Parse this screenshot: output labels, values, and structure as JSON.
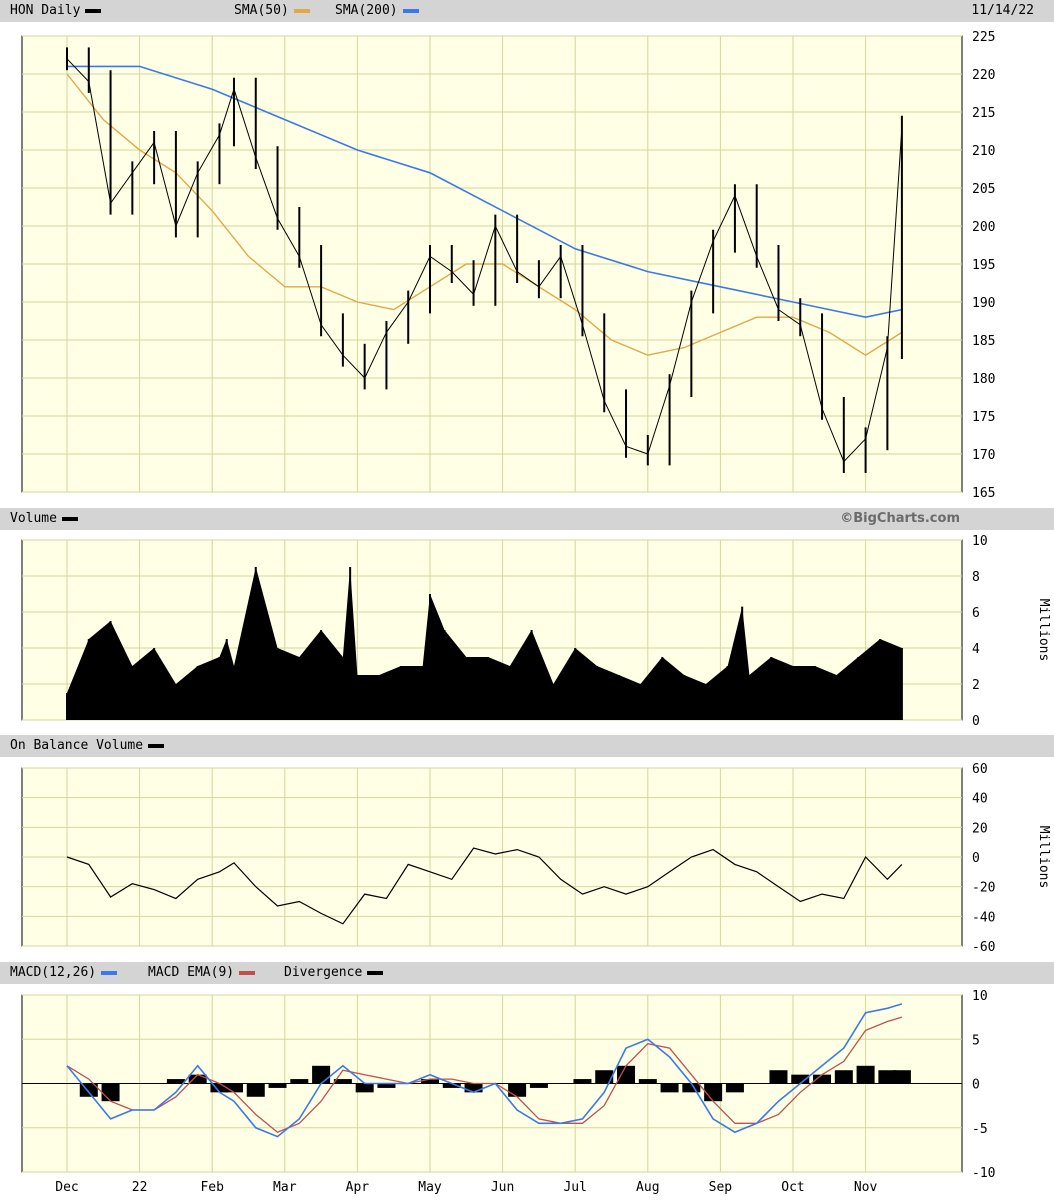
{
  "header": {
    "title": "HON Daily",
    "sma50_label": "SMA(50)",
    "sma200_label": "SMA(200)",
    "date": "11/14/22",
    "copyright": "©BigCharts.com"
  },
  "panels": {
    "volume_label": "Volume",
    "obv_label": "On Balance Volume",
    "macd_label": "MACD(12,26)",
    "macd_ema_label": "MACD EMA(9)",
    "divergence_label": "Divergence",
    "millions_label": "Millions"
  },
  "colors": {
    "background": "#ffffe6",
    "grid": "#d6d69a",
    "header_bar": "#d4d4d4",
    "price": "#000000",
    "sma50": "#e0a848",
    "sma200": "#3a7ae8",
    "macd": "#3a7ae8",
    "macd_ema": "#c0504d",
    "divergence": "#000000"
  },
  "x_labels": [
    "Dec",
    "22",
    "Feb",
    "Mar",
    "Apr",
    "May",
    "Jun",
    "Jul",
    "Aug",
    "Sep",
    "Oct",
    "Nov"
  ],
  "chart_data": [
    {
      "type": "line",
      "name": "price",
      "ylim": [
        165,
        225
      ],
      "yticks": [
        165,
        170,
        175,
        180,
        185,
        190,
        195,
        200,
        205,
        210,
        215,
        220,
        225
      ],
      "x_month_index": [
        0,
        0.3,
        0.6,
        0.9,
        1.2,
        1.5,
        1.8,
        2.1,
        2.3,
        2.6,
        2.9,
        3.2,
        3.5,
        3.8,
        4.1,
        4.4,
        4.7,
        5.0,
        5.3,
        5.6,
        5.9,
        6.2,
        6.5,
        6.8,
        7.1,
        7.4,
        7.7,
        8.0,
        8.3,
        8.6,
        8.9,
        9.2,
        9.5,
        9.8,
        10.1,
        10.4,
        10.7,
        11.0,
        11.3,
        11.5
      ],
      "close": [
        222,
        219,
        203,
        207,
        211,
        200,
        207,
        212,
        218,
        209,
        201,
        196,
        187,
        183,
        180,
        186,
        190,
        196,
        194,
        191,
        200,
        194,
        192,
        196,
        187,
        177,
        171,
        170,
        179,
        190,
        198,
        204,
        196,
        189,
        187,
        176,
        169,
        172,
        184,
        213
      ],
      "sma50_x": [
        0,
        0.5,
        1.0,
        1.5,
        2.0,
        2.5,
        3.0,
        3.5,
        4.0,
        4.5,
        5.0,
        5.5,
        6.0,
        6.5,
        7.0,
        7.5,
        8.0,
        8.5,
        9.0,
        9.5,
        10.0,
        10.5,
        11.0,
        11.5
      ],
      "sma50": [
        220,
        214,
        210,
        207,
        202,
        196,
        192,
        192,
        190,
        189,
        192,
        195,
        195,
        192,
        189,
        185,
        183,
        184,
        186,
        188,
        188,
        186,
        183,
        186
      ],
      "sma200_x": [
        0,
        1.0,
        2.0,
        3.0,
        4.0,
        5.0,
        6.0,
        7.0,
        8.0,
        9.0,
        10.0,
        10.5,
        11.0,
        11.5
      ],
      "sma200": [
        221,
        221,
        218,
        214,
        210,
        207,
        202,
        197,
        194,
        192,
        190,
        189,
        188,
        189
      ]
    },
    {
      "type": "bar",
      "name": "volume",
      "ylim": [
        0,
        10
      ],
      "yticks": [
        0,
        2,
        4,
        6,
        8,
        10
      ],
      "x_month_index": [
        0,
        0.3,
        0.6,
        0.9,
        1.2,
        1.5,
        1.8,
        2.1,
        2.2,
        2.3,
        2.6,
        2.9,
        3.2,
        3.5,
        3.8,
        3.9,
        4.0,
        4.3,
        4.6,
        4.9,
        5.0,
        5.2,
        5.5,
        5.8,
        6.1,
        6.4,
        6.7,
        7.0,
        7.3,
        7.6,
        7.9,
        8.2,
        8.5,
        8.8,
        9.1,
        9.3,
        9.4,
        9.7,
        10.0,
        10.3,
        10.6,
        10.9,
        11.2,
        11.5
      ],
      "values": [
        1.5,
        4.5,
        5.5,
        3,
        4,
        2,
        3,
        3.5,
        4.5,
        3,
        8.5,
        4,
        3.5,
        5,
        3.5,
        8.5,
        2.5,
        2.5,
        3,
        3,
        7,
        5,
        3.5,
        3.5,
        3,
        5,
        2,
        4,
        3,
        2.5,
        2,
        3.5,
        2.5,
        2,
        3,
        6.3,
        2.5,
        3.5,
        3,
        3,
        2.5,
        3.5,
        4.5,
        4
      ]
    },
    {
      "type": "line",
      "name": "on balance volume",
      "ylim": [
        -60,
        60
      ],
      "yticks": [
        -60,
        -40,
        -20,
        0,
        20,
        40,
        60
      ],
      "x_month_index": [
        0,
        0.3,
        0.6,
        0.9,
        1.2,
        1.5,
        1.8,
        2.1,
        2.3,
        2.6,
        2.9,
        3.2,
        3.5,
        3.8,
        4.1,
        4.4,
        4.7,
        5.0,
        5.3,
        5.6,
        5.9,
        6.2,
        6.5,
        6.8,
        7.1,
        7.4,
        7.7,
        8.0,
        8.3,
        8.6,
        8.9,
        9.2,
        9.5,
        9.8,
        10.1,
        10.4,
        10.7,
        11.0,
        11.3,
        11.5
      ],
      "values": [
        0,
        -5,
        -27,
        -18,
        -22,
        -28,
        -15,
        -10,
        -4,
        -20,
        -33,
        -30,
        -38,
        -45,
        -25,
        -28,
        -5,
        -10,
        -15,
        6,
        2,
        5,
        0,
        -15,
        -25,
        -20,
        -25,
        -20,
        -10,
        0,
        5,
        -5,
        -10,
        -20,
        -30,
        -25,
        -28,
        0,
        -15,
        -5
      ]
    },
    {
      "type": "line",
      "name": "macd",
      "ylim": [
        -10,
        10
      ],
      "yticks": [
        -10,
        -5,
        0,
        5,
        10
      ],
      "x_month_index": [
        0,
        0.3,
        0.6,
        0.9,
        1.2,
        1.5,
        1.8,
        2.1,
        2.3,
        2.6,
        2.9,
        3.2,
        3.5,
        3.8,
        4.1,
        4.4,
        4.7,
        5.0,
        5.3,
        5.6,
        5.9,
        6.2,
        6.5,
        6.8,
        7.1,
        7.4,
        7.7,
        8.0,
        8.3,
        8.6,
        8.9,
        9.2,
        9.5,
        9.8,
        10.1,
        10.4,
        10.7,
        11.0,
        11.3,
        11.5
      ],
      "macd": [
        2,
        -1,
        -4,
        -3,
        -3,
        -1,
        2,
        -1,
        -2,
        -5,
        -6,
        -4,
        0,
        2,
        0,
        0,
        0,
        1,
        0,
        -1,
        0,
        -3,
        -4.5,
        -4.5,
        -4,
        -1,
        4,
        5,
        3,
        0,
        -4,
        -5.5,
        -4.5,
        -2,
        0,
        2,
        4,
        8,
        8.5,
        9
      ],
      "macd_ema": [
        2,
        0.5,
        -2,
        -3,
        -3,
        -1.5,
        1,
        0,
        -1,
        -3.5,
        -5.5,
        -4.5,
        -2,
        1.5,
        1,
        0.5,
        0,
        0.5,
        0.5,
        0,
        0,
        -1.5,
        -4,
        -4.5,
        -4.5,
        -2.5,
        2,
        4.5,
        4,
        1,
        -2,
        -4.5,
        -4.5,
        -3.5,
        -1,
        1,
        2.5,
        6,
        7,
        7.5
      ],
      "divergence": [
        0,
        -1.5,
        -2,
        0,
        0,
        0.5,
        1,
        -1,
        -1,
        -1.5,
        -0.5,
        0.5,
        2,
        0.5,
        -1,
        -0.5,
        0,
        0.5,
        -0.5,
        -1,
        0,
        -1.5,
        -0.5,
        0,
        0.5,
        1.5,
        2,
        0.5,
        -1,
        -1,
        -2,
        -1,
        0,
        1.5,
        1,
        1,
        1.5,
        2,
        1.5,
        1.5
      ]
    }
  ]
}
